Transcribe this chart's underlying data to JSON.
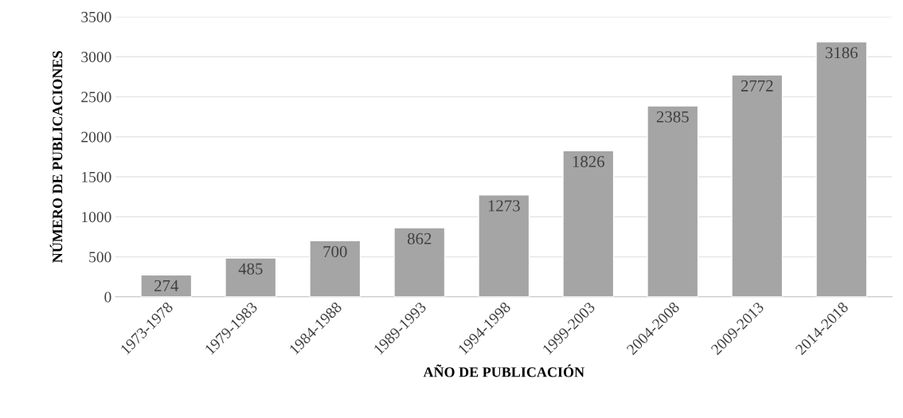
{
  "chart_data": {
    "type": "bar",
    "xlabel": "AÑO DE PUBLICACIÓN",
    "ylabel": "NÚMERO DE PUBLICACIONES",
    "categories": [
      "1973-1978",
      "1979-1983",
      "1984-1988",
      "1989-1993",
      "1994-1998",
      "1999-2003",
      "2004-2008",
      "2009-2013",
      "2014-2018"
    ],
    "values": [
      274,
      485,
      700,
      862,
      1273,
      1826,
      2385,
      2772,
      3186
    ],
    "color": "#a5a5a5",
    "ylim": [
      0,
      3500
    ],
    "yticks": [
      0,
      500,
      1000,
      1500,
      2000,
      2500,
      3000,
      3500
    ],
    "grid": "y",
    "data_labels": true
  }
}
